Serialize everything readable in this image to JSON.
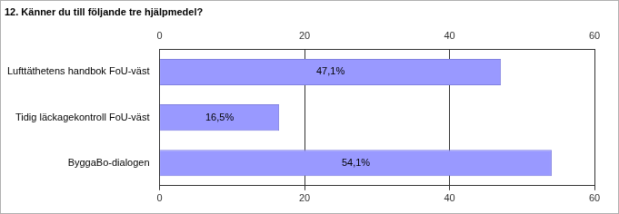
{
  "chart_data": {
    "type": "bar",
    "orientation": "horizontal",
    "title": "12. Känner du till följande tre hjälpmedel?",
    "categories": [
      "Lufttäthetens handbok FoU-väst",
      "Tidig läckagekontroll FoU-väst",
      "ByggaBo-dialogen"
    ],
    "values": [
      47.1,
      16.5,
      54.1
    ],
    "value_labels": [
      "47,1%",
      "16,5%",
      "54,1%"
    ],
    "data_labels": true,
    "color": "#9999ff",
    "xlim": [
      0,
      60
    ],
    "xticks": [
      0,
      20,
      40,
      60
    ],
    "grid": true
  }
}
